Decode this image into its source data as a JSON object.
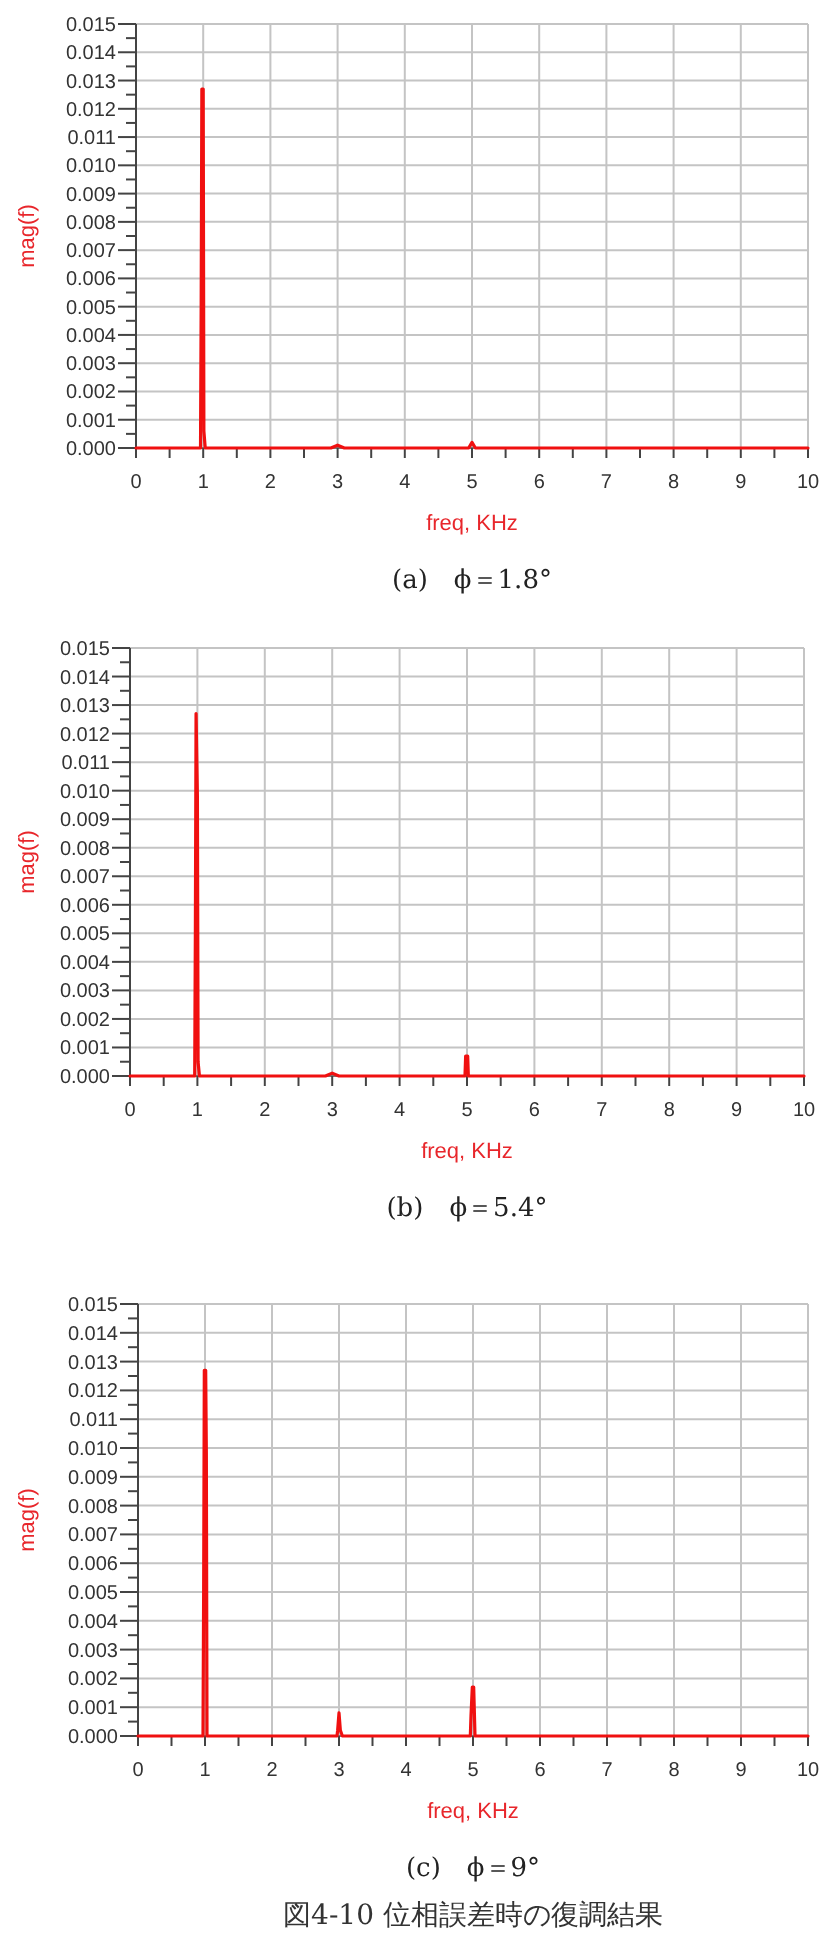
{
  "chart_data": [
    {
      "type": "line",
      "title": "(a)　ϕ＝1.8°",
      "xlabel": "freq, KHz",
      "ylabel": "mag(f)",
      "color": "#f01010",
      "x": [
        0,
        0.96,
        0.97,
        0.98,
        1.0,
        1.01,
        1.03,
        2.9,
        3.0,
        3.1,
        4.95,
        5.0,
        5.05,
        10
      ],
      "values": [
        0,
        0,
        0.0051,
        0.0127,
        0.0127,
        0.0006,
        0,
        0,
        0.0001,
        0,
        0,
        0.0002,
        0,
        0
      ],
      "xlim": [
        0,
        10
      ],
      "ylim": [
        0,
        0.015
      ],
      "grid": true,
      "xticks": [
        0,
        {
          "value": 0.5,
          "label": null
        },
        1,
        {
          "value": 1.5,
          "label": null
        },
        2,
        {
          "value": 2.5,
          "label": null
        },
        3,
        {
          "value": 3.5,
          "label": null
        },
        4,
        {
          "value": 4.5,
          "label": null
        },
        5,
        {
          "value": 5.5,
          "label": null
        },
        6,
        {
          "value": 6.5,
          "label": null
        },
        7,
        {
          "value": 7.5,
          "label": null
        },
        8,
        {
          "value": 8.5,
          "label": null
        },
        9,
        {
          "value": 9.5,
          "label": null
        },
        10
      ],
      "yticks": [
        {
          "value": 0,
          "label": "0.000"
        },
        {
          "value": 0.0005,
          "label": null
        },
        {
          "value": 0.001,
          "label": "0.001"
        },
        {
          "value": 0.0015,
          "label": null
        },
        {
          "value": 0.002,
          "label": "0.002"
        },
        {
          "value": 0.0025,
          "label": null
        },
        {
          "value": 0.003,
          "label": "0.003"
        },
        {
          "value": 0.0035,
          "label": null
        },
        {
          "value": 0.004,
          "label": "0.004"
        },
        {
          "value": 0.0045,
          "label": null
        },
        {
          "value": 0.005,
          "label": "0.005"
        },
        {
          "value": 0.0055,
          "label": null
        },
        {
          "value": 0.006,
          "label": "0.006"
        },
        {
          "value": 0.0065,
          "label": null
        },
        {
          "value": 0.007,
          "label": "0.007"
        },
        {
          "value": 0.0075,
          "label": null
        },
        {
          "value": 0.008,
          "label": "0.008"
        },
        {
          "value": 0.0085,
          "label": null
        },
        {
          "value": 0.009,
          "label": "0.009"
        },
        {
          "value": 0.0095,
          "label": null
        },
        {
          "value": 0.01,
          "label": "0.010"
        },
        {
          "value": 0.0105,
          "label": null
        },
        {
          "value": 0.011,
          "label": "0.011"
        },
        {
          "value": 0.0115,
          "label": null
        },
        {
          "value": 0.012,
          "label": "0.012"
        },
        {
          "value": 0.0125,
          "label": null
        },
        {
          "value": 0.013,
          "label": "0.013"
        },
        {
          "value": 0.0135,
          "label": null
        },
        {
          "value": 0.014,
          "label": "0.014"
        },
        {
          "value": 0.0145,
          "label": null
        },
        {
          "value": 0.015,
          "label": "0.015"
        }
      ]
    },
    {
      "type": "line",
      "title": "(b)　ϕ＝5.4°",
      "xlabel": "freq, KHz",
      "ylabel": "mag(f)",
      "color": "#f01010",
      "x": [
        0,
        0.96,
        0.97,
        0.98,
        1.0,
        1.01,
        1.03,
        2.9,
        3.0,
        3.1,
        4.97,
        4.98,
        5.01,
        5.02,
        10
      ],
      "values": [
        0,
        0,
        0.0051,
        0.0127,
        0.0098,
        0.0005,
        0,
        0,
        0.0001,
        0,
        0,
        0.0007,
        0.0007,
        0,
        0
      ],
      "xlim": [
        0,
        10
      ],
      "ylim": [
        0,
        0.015
      ],
      "grid": true,
      "xticks": [
        0,
        {
          "value": 0.5,
          "label": null
        },
        1,
        {
          "value": 1.5,
          "label": null
        },
        2,
        {
          "value": 2.5,
          "label": null
        },
        3,
        {
          "value": 3.5,
          "label": null
        },
        4,
        {
          "value": 4.5,
          "label": null
        },
        5,
        {
          "value": 5.5,
          "label": null
        },
        6,
        {
          "value": 6.5,
          "label": null
        },
        7,
        {
          "value": 7.5,
          "label": null
        },
        8,
        {
          "value": 8.5,
          "label": null
        },
        9,
        {
          "value": 9.5,
          "label": null
        },
        10
      ],
      "yticks": [
        {
          "value": 0,
          "label": "0.000"
        },
        {
          "value": 0.0005,
          "label": null
        },
        {
          "value": 0.001,
          "label": "0.001"
        },
        {
          "value": 0.0015,
          "label": null
        },
        {
          "value": 0.002,
          "label": "0.002"
        },
        {
          "value": 0.0025,
          "label": null
        },
        {
          "value": 0.003,
          "label": "0.003"
        },
        {
          "value": 0.0035,
          "label": null
        },
        {
          "value": 0.004,
          "label": "0.004"
        },
        {
          "value": 0.0045,
          "label": null
        },
        {
          "value": 0.005,
          "label": "0.005"
        },
        {
          "value": 0.0055,
          "label": null
        },
        {
          "value": 0.006,
          "label": "0.006"
        },
        {
          "value": 0.0065,
          "label": null
        },
        {
          "value": 0.007,
          "label": "0.007"
        },
        {
          "value": 0.0075,
          "label": null
        },
        {
          "value": 0.008,
          "label": "0.008"
        },
        {
          "value": 0.0085,
          "label": null
        },
        {
          "value": 0.009,
          "label": "0.009"
        },
        {
          "value": 0.0095,
          "label": null
        },
        {
          "value": 0.01,
          "label": "0.010"
        },
        {
          "value": 0.0105,
          "label": null
        },
        {
          "value": 0.011,
          "label": "0.011"
        },
        {
          "value": 0.0115,
          "label": null
        },
        {
          "value": 0.012,
          "label": "0.012"
        },
        {
          "value": 0.0125,
          "label": null
        },
        {
          "value": 0.013,
          "label": "0.013"
        },
        {
          "value": 0.0135,
          "label": null
        },
        {
          "value": 0.014,
          "label": "0.014"
        },
        {
          "value": 0.0145,
          "label": null
        },
        {
          "value": 0.015,
          "label": "0.015"
        }
      ]
    },
    {
      "type": "line",
      "title": "(c)　ϕ＝9°",
      "xlabel": "freq, KHz",
      "ylabel": "mag(f)",
      "color": "#f01010",
      "x": [
        0,
        0.97,
        0.98,
        0.99,
        1.01,
        1.02,
        1.03,
        2.97,
        2.98,
        3.0,
        3.02,
        3.05,
        4.96,
        4.97,
        4.99,
        5.01,
        5.03,
        10
      ],
      "values": [
        0,
        0,
        0.0051,
        0.0127,
        0.0127,
        0.0098,
        0,
        0,
        0.0002,
        0.0008,
        0.0002,
        0,
        0,
        0.0007,
        0.0017,
        0.0017,
        0,
        0
      ],
      "xlim": [
        0,
        10
      ],
      "ylim": [
        0,
        0.015
      ],
      "grid": true,
      "xticks": [
        0,
        {
          "value": 0.5,
          "label": null
        },
        1,
        {
          "value": 1.5,
          "label": null
        },
        2,
        {
          "value": 2.5,
          "label": null
        },
        3,
        {
          "value": 3.5,
          "label": null
        },
        4,
        {
          "value": 4.5,
          "label": null
        },
        5,
        {
          "value": 5.5,
          "label": null
        },
        6,
        {
          "value": 6.5,
          "label": null
        },
        7,
        {
          "value": 7.5,
          "label": null
        },
        8,
        {
          "value": 8.5,
          "label": null
        },
        9,
        {
          "value": 9.5,
          "label": null
        },
        10
      ],
      "yticks": [
        {
          "value": 0,
          "label": "0.000"
        },
        {
          "value": 0.0005,
          "label": null
        },
        {
          "value": 0.001,
          "label": "0.001"
        },
        {
          "value": 0.0015,
          "label": null
        },
        {
          "value": 0.002,
          "label": "0.002"
        },
        {
          "value": 0.0025,
          "label": null
        },
        {
          "value": 0.003,
          "label": "0.003"
        },
        {
          "value": 0.0035,
          "label": null
        },
        {
          "value": 0.004,
          "label": "0.004"
        },
        {
          "value": 0.0045,
          "label": null
        },
        {
          "value": 0.005,
          "label": "0.005"
        },
        {
          "value": 0.0055,
          "label": null
        },
        {
          "value": 0.006,
          "label": "0.006"
        },
        {
          "value": 0.0065,
          "label": null
        },
        {
          "value": 0.007,
          "label": "0.007"
        },
        {
          "value": 0.0075,
          "label": null
        },
        {
          "value": 0.008,
          "label": "0.008"
        },
        {
          "value": 0.0085,
          "label": null
        },
        {
          "value": 0.009,
          "label": "0.009"
        },
        {
          "value": 0.0095,
          "label": null
        },
        {
          "value": 0.01,
          "label": "0.010"
        },
        {
          "value": 0.0105,
          "label": null
        },
        {
          "value": 0.011,
          "label": "0.011"
        },
        {
          "value": 0.0115,
          "label": null
        },
        {
          "value": 0.012,
          "label": "0.012"
        },
        {
          "value": 0.0125,
          "label": null
        },
        {
          "value": 0.013,
          "label": "0.013"
        },
        {
          "value": 0.0135,
          "label": null
        },
        {
          "value": 0.014,
          "label": "0.014"
        },
        {
          "value": 0.0145,
          "label": null
        },
        {
          "value": 0.015,
          "label": "0.015"
        }
      ],
      "annotations": [
        "図4-10 位相誤差時の復調結果"
      ]
    }
  ]
}
